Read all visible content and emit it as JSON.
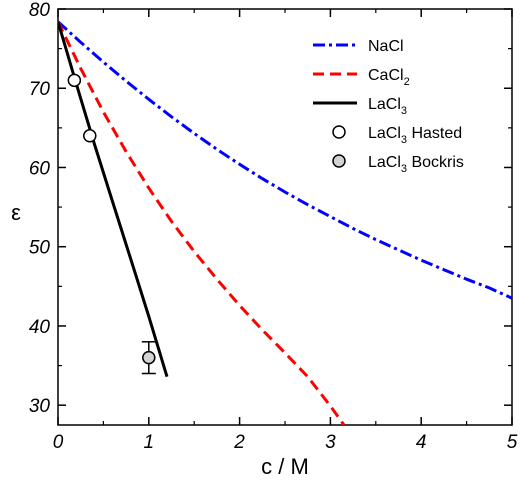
{
  "chart_data": {
    "type": "line",
    "xlabel": "c / M",
    "ylabel": "ε",
    "xlim": [
      0,
      5
    ],
    "ylim": [
      27.5,
      80
    ],
    "xticks": [
      0,
      1,
      2,
      3,
      4,
      5
    ],
    "yticks": [
      30,
      40,
      50,
      60,
      70,
      80
    ],
    "grid": false,
    "legend_position": "top-right",
    "series": [
      {
        "name": "NaCl",
        "sub": "",
        "style": "dash-dot",
        "color": "#0000ff",
        "x": [
          0,
          0.25,
          0.5,
          0.75,
          1,
          1.25,
          1.5,
          1.75,
          2,
          2.25,
          2.5,
          2.75,
          3,
          3.25,
          3.5,
          3.75,
          4,
          4.25,
          4.5,
          4.75,
          5
        ],
        "y": [
          78.4,
          75.8,
          73.3,
          70.9,
          68.6,
          66.4,
          64.3,
          62.3,
          60.4,
          58.6,
          56.9,
          55.3,
          53.8,
          52.3,
          50.9,
          49.6,
          48.3,
          47.1,
          45.9,
          44.8,
          43.5
        ]
      },
      {
        "name": "CaCl",
        "sub": "2",
        "style": "dashed",
        "color": "#ff0000",
        "x": [
          0,
          0.25,
          0.5,
          0.75,
          1,
          1.25,
          1.5,
          1.75,
          2,
          2.25,
          2.5,
          2.75,
          3,
          3.15
        ],
        "y": [
          78.4,
          72.5,
          67.0,
          62.0,
          57.4,
          53.2,
          49.4,
          45.9,
          42.6,
          39.5,
          36.6,
          33.6,
          29.9,
          27.5
        ]
      },
      {
        "name": "LaCl",
        "sub": "3",
        "style": "solid",
        "color": "#000000",
        "x": [
          0,
          0.2,
          0.4,
          0.6,
          0.8,
          1.0,
          1.2
        ],
        "y": [
          78.4,
          70.6,
          63.0,
          55.7,
          48.5,
          41.2,
          33.6
        ]
      }
    ],
    "points": [
      {
        "name": "LaCl",
        "sub": "3",
        "suffix": " Hasted",
        "fill": "#ffffff",
        "x": [
          0.18,
          0.35
        ],
        "y": [
          71.0,
          64.0
        ]
      },
      {
        "name": "LaCl",
        "sub": "3",
        "suffix": " Bockris",
        "fill": "#d3d3d3",
        "x": [
          1.0
        ],
        "y": [
          36.0
        ],
        "yerr": [
          2.0
        ]
      }
    ]
  }
}
